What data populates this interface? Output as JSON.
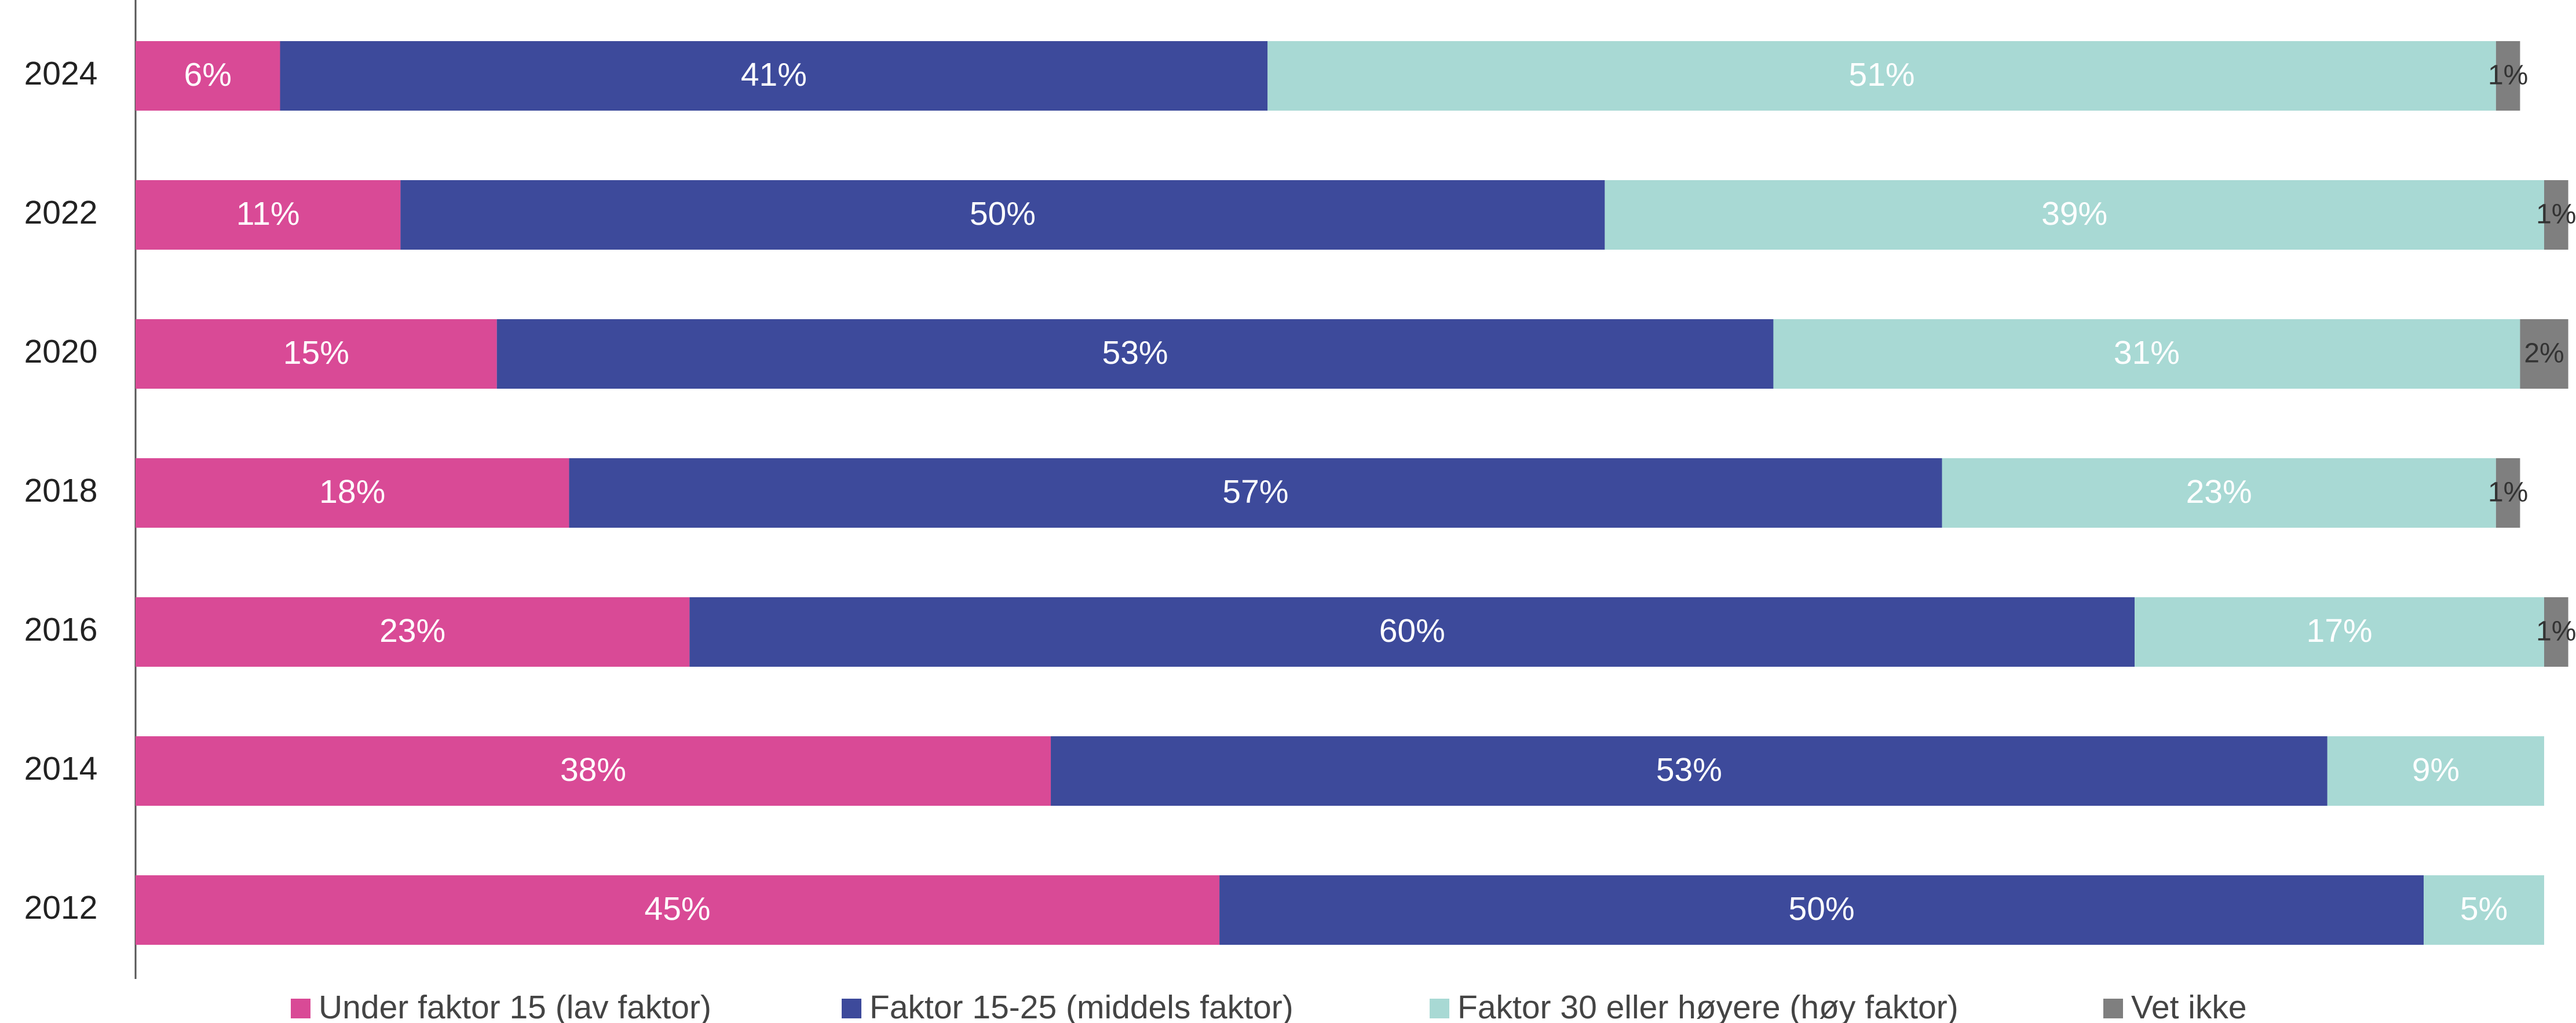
{
  "chart_data": {
    "type": "bar",
    "orientation": "horizontal",
    "stacked": true,
    "categories": [
      "2024",
      "2022",
      "2020",
      "2018",
      "2016",
      "2014",
      "2012"
    ],
    "xlim": [
      0,
      100
    ],
    "legend": "bottom",
    "series": [
      {
        "name": "Under faktor 15 (lav faktor)",
        "color": "#d94a96",
        "label_color": "#ffffff",
        "values": [
          6,
          11,
          15,
          18,
          23,
          38,
          45
        ],
        "value_labels": [
          "6%",
          "11%",
          "15%",
          "18%",
          "23%",
          "38%",
          "45%"
        ]
      },
      {
        "name": "Faktor 15-25 (middels faktor)",
        "color": "#3d4a9b",
        "label_color": "#ffffff",
        "values": [
          41,
          50,
          53,
          57,
          60,
          53,
          50
        ],
        "value_labels": [
          "41%",
          "50%",
          "53%",
          "57%",
          "60%",
          "53%",
          "50%"
        ]
      },
      {
        "name": "Faktor 30 eller høyere (høy faktor)",
        "color": "#a8d9d4",
        "label_color": "#ffffff",
        "values": [
          51,
          39,
          31,
          23,
          17,
          9,
          5
        ],
        "value_labels": [
          "51%",
          "39%",
          "31%",
          "23%",
          "17%",
          "9%",
          "5%"
        ]
      },
      {
        "name": "Vet ikke",
        "color": "#7f7f7f",
        "label_color": "#333333",
        "values": [
          1,
          1,
          2,
          1,
          1,
          null,
          null
        ],
        "value_labels": [
          "1%",
          "1%",
          "2%",
          "1%",
          "1%",
          null,
          null
        ]
      }
    ]
  }
}
